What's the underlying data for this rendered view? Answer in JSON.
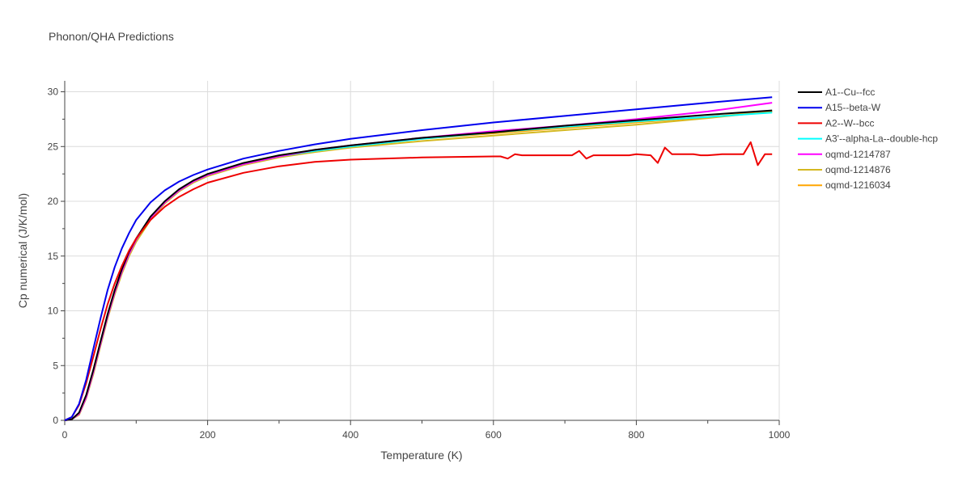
{
  "chart_data": {
    "type": "line",
    "title": "Phonon/QHA Predictions",
    "xlabel": "Temperature (K)",
    "ylabel": "Cp numerical (J/K/mol)",
    "xlim": [
      0,
      1000
    ],
    "ylim": [
      0,
      31
    ],
    "xticks": [
      0,
      200,
      400,
      600,
      800,
      1000
    ],
    "yticks": [
      0,
      5,
      10,
      15,
      20,
      25,
      30
    ],
    "grid": true,
    "legend_position": "top-right",
    "series": [
      {
        "name": "A1--Cu--fcc",
        "color": "#000000",
        "x": [
          0,
          10,
          20,
          30,
          40,
          50,
          60,
          70,
          80,
          90,
          100,
          120,
          140,
          160,
          180,
          200,
          250,
          300,
          350,
          400,
          500,
          600,
          700,
          800,
          900,
          990
        ],
        "y": [
          0,
          0.1,
          0.7,
          2.3,
          4.6,
          7.2,
          9.7,
          11.9,
          13.8,
          15.4,
          16.6,
          18.6,
          20.0,
          21.1,
          21.9,
          22.5,
          23.5,
          24.2,
          24.7,
          25.1,
          25.8,
          26.3,
          26.9,
          27.4,
          27.9,
          28.3
        ]
      },
      {
        "name": "A15--beta-W",
        "color": "#0000ee",
        "x": [
          0,
          10,
          20,
          30,
          40,
          50,
          60,
          70,
          80,
          90,
          100,
          120,
          140,
          160,
          180,
          200,
          250,
          300,
          350,
          400,
          500,
          600,
          700,
          800,
          900,
          990
        ],
        "y": [
          0,
          0.3,
          1.5,
          3.7,
          6.5,
          9.3,
          11.9,
          14.0,
          15.7,
          17.1,
          18.3,
          19.9,
          21.0,
          21.8,
          22.4,
          22.9,
          23.9,
          24.6,
          25.2,
          25.7,
          26.5,
          27.2,
          27.8,
          28.4,
          29.0,
          29.5
        ]
      },
      {
        "name": "A2--W--bcc",
        "color": "#ee0000",
        "x": [
          0,
          10,
          20,
          30,
          40,
          50,
          60,
          70,
          80,
          90,
          100,
          120,
          140,
          160,
          180,
          200,
          250,
          300,
          350,
          400,
          500,
          600,
          610,
          620,
          630,
          640,
          700,
          710,
          720,
          730,
          740,
          790,
          800,
          820,
          830,
          840,
          850,
          860,
          880,
          890,
          900,
          920,
          940,
          950,
          960,
          970,
          980,
          990
        ],
        "y": [
          0,
          0.3,
          1.4,
          3.4,
          5.8,
          8.3,
          10.6,
          12.5,
          14.1,
          15.5,
          16.6,
          18.3,
          19.5,
          20.4,
          21.1,
          21.7,
          22.6,
          23.2,
          23.6,
          23.8,
          24.0,
          24.1,
          24.1,
          23.9,
          24.3,
          24.2,
          24.2,
          24.2,
          24.6,
          23.9,
          24.2,
          24.2,
          24.3,
          24.2,
          23.5,
          24.9,
          24.3,
          24.3,
          24.3,
          24.2,
          24.2,
          24.3,
          24.3,
          24.3,
          25.4,
          23.3,
          24.3,
          24.3
        ]
      },
      {
        "name": "A3'--alpha-La--double-hcp",
        "color": "#00ffff",
        "x": [
          0,
          10,
          20,
          30,
          40,
          50,
          60,
          70,
          80,
          90,
          100,
          120,
          140,
          160,
          180,
          200,
          250,
          300,
          350,
          400,
          500,
          600,
          700,
          800,
          900,
          990
        ],
        "y": [
          0,
          0.1,
          0.6,
          2.1,
          4.4,
          7.0,
          9.5,
          11.7,
          13.6,
          15.2,
          16.5,
          18.5,
          19.9,
          21.0,
          21.8,
          22.4,
          23.4,
          24.1,
          24.6,
          25.0,
          25.7,
          26.3,
          26.8,
          27.3,
          27.7,
          28.1
        ]
      },
      {
        "name": "oqmd-1214787",
        "color": "#ff00ff",
        "x": [
          0,
          10,
          20,
          30,
          40,
          50,
          60,
          70,
          80,
          90,
          100,
          120,
          140,
          160,
          180,
          200,
          250,
          300,
          350,
          400,
          500,
          600,
          700,
          800,
          900,
          990
        ],
        "y": [
          0,
          0.1,
          0.6,
          2.1,
          4.4,
          7.0,
          9.5,
          11.7,
          13.6,
          15.2,
          16.5,
          18.5,
          19.9,
          21.0,
          21.8,
          22.4,
          23.4,
          24.1,
          24.7,
          25.1,
          25.8,
          26.4,
          26.9,
          27.5,
          28.2,
          29.0
        ]
      },
      {
        "name": "oqmd-1214876",
        "color": "#d4b820",
        "x": [
          0,
          10,
          20,
          30,
          40,
          50,
          60,
          70,
          80,
          90,
          100,
          120,
          140,
          160,
          180,
          200,
          250,
          300,
          350,
          400,
          500,
          600,
          700,
          800,
          900,
          990
        ],
        "y": [
          0,
          0.1,
          0.5,
          2.0,
          4.2,
          6.8,
          9.3,
          11.5,
          13.4,
          15.0,
          16.3,
          18.3,
          19.8,
          20.9,
          21.7,
          22.3,
          23.3,
          24.0,
          24.5,
          24.9,
          25.5,
          26.0,
          26.5,
          27.0,
          27.6,
          28.2
        ]
      },
      {
        "name": "oqmd-1216034",
        "color": "#ffa500",
        "x": [
          0,
          10,
          20,
          30,
          40,
          50,
          60,
          70,
          80,
          90,
          100,
          120,
          140,
          160,
          180,
          200,
          250,
          300,
          350,
          400,
          500,
          600,
          700,
          800,
          900,
          990
        ],
        "y": [
          0,
          0.1,
          0.6,
          2.1,
          4.4,
          7.0,
          9.5,
          11.7,
          13.6,
          15.2,
          16.5,
          18.5,
          19.9,
          21.0,
          21.8,
          22.4,
          23.4,
          24.1,
          24.6,
          25.0,
          25.7,
          26.2,
          26.7,
          27.2,
          27.7,
          28.2
        ]
      }
    ]
  }
}
